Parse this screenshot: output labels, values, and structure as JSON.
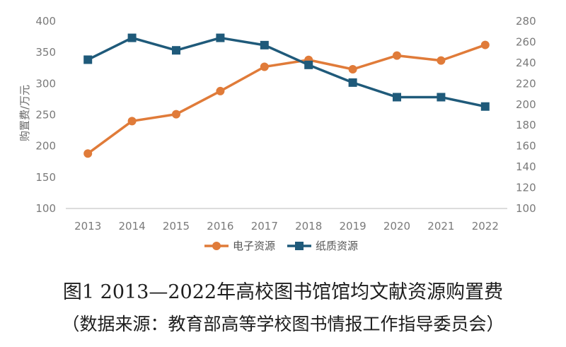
{
  "chart_data": {
    "type": "line",
    "categories": [
      "2013",
      "2014",
      "2015",
      "2016",
      "2017",
      "2018",
      "2019",
      "2020",
      "2021",
      "2022"
    ],
    "ylabel": "购置费/万元",
    "ylim": [
      100,
      400
    ],
    "yticks": [
      "100",
      "150",
      "200",
      "250",
      "300",
      "350",
      "400"
    ],
    "y2lim": [
      100,
      280
    ],
    "y2ticks": [
      "100",
      "120",
      "140",
      "160",
      "180",
      "200",
      "220",
      "240",
      "260",
      "280"
    ],
    "grid": false,
    "legend_position": "bottom",
    "series": [
      {
        "name": "电子资源",
        "axis": "left",
        "color": "#E07B39",
        "marker": "circle",
        "values": [
          188,
          240,
          251,
          288,
          327,
          338,
          323,
          345,
          337,
          362
        ]
      },
      {
        "name": "纸质资源",
        "axis": "right",
        "color": "#1F5A7A",
        "marker": "square",
        "values": [
          243,
          264,
          252,
          264,
          257,
          238,
          221,
          207,
          207,
          198
        ]
      }
    ]
  },
  "caption": {
    "line1": "图1 2013—2022年高校图书馆馆均文献资源购置费",
    "line2": "（数据来源：教育部高等学校图书情报工作指导委员会）"
  }
}
